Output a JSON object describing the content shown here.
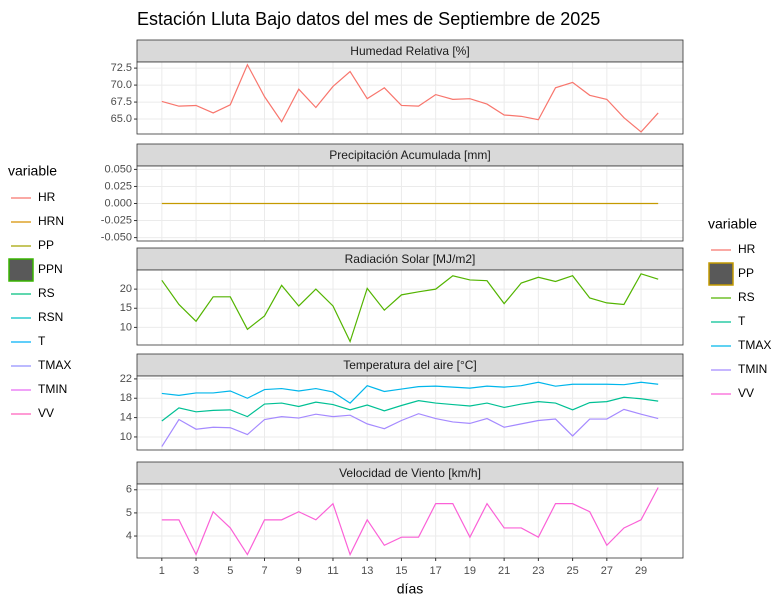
{
  "title": "Estación Lluta Bajo datos del mes de Septiembre de 2025",
  "x_label": "días",
  "legends": [
    {
      "title": "variable",
      "entries": [
        {
          "name": "HR",
          "color": "#f8766d"
        },
        {
          "name": "HRN",
          "color": "#d89000"
        },
        {
          "name": "PP",
          "color": "#a3a500"
        },
        {
          "name": "PPN",
          "color": "#39b600",
          "key": "box"
        },
        {
          "name": "RS",
          "color": "#00bf7d"
        },
        {
          "name": "RSN",
          "color": "#00bfc4"
        },
        {
          "name": "T",
          "color": "#00b0f6"
        },
        {
          "name": "TMAX",
          "color": "#9590ff"
        },
        {
          "name": "TMIN",
          "color": "#e76bf3"
        },
        {
          "name": "VV",
          "color": "#ff62bc"
        }
      ]
    },
    {
      "title": "variable",
      "entries": [
        {
          "name": "HR",
          "color": "#f8766d"
        },
        {
          "name": "PP",
          "color": "#c49a00",
          "key": "box"
        },
        {
          "name": "RS",
          "color": "#53b400"
        },
        {
          "name": "T",
          "color": "#00c094"
        },
        {
          "name": "TMAX",
          "color": "#00b6eb"
        },
        {
          "name": "TMIN",
          "color": "#a58aff"
        },
        {
          "name": "VV",
          "color": "#fb61d7"
        }
      ]
    }
  ],
  "chart_data": [
    {
      "type": "line",
      "title": "Humedad Relativa [%]",
      "x": [
        1,
        2,
        3,
        4,
        5,
        6,
        7,
        8,
        9,
        10,
        11,
        12,
        13,
        14,
        15,
        16,
        17,
        18,
        19,
        20,
        21,
        22,
        23,
        24,
        25,
        26,
        27,
        28,
        29,
        30
      ],
      "series": [
        {
          "name": "HR",
          "color": "#f8766d",
          "values": [
            67.6,
            66.9,
            67.0,
            65.9,
            67.1,
            73.0,
            68.3,
            64.6,
            69.4,
            66.7,
            69.8,
            72.0,
            68.0,
            69.6,
            67.0,
            66.9,
            68.6,
            67.9,
            68.0,
            67.2,
            65.6,
            65.4,
            64.9,
            69.6,
            70.4,
            68.5,
            67.9,
            65.2,
            63.1,
            65.9
          ]
        }
      ],
      "xlim": [
        -0.45,
        31.45
      ],
      "ylim": [
        62.8,
        73.4
      ],
      "yticks": [
        {
          "value": 65,
          "label": "65.0"
        },
        {
          "value": 67.5,
          "label": "67.5"
        },
        {
          "value": 70,
          "label": "70.0"
        },
        {
          "value": 72.5,
          "label": "72.5"
        }
      ],
      "grid": true
    },
    {
      "type": "line",
      "title": "Precipitación Acumulada [mm]",
      "x": [
        1,
        2,
        3,
        4,
        5,
        6,
        7,
        8,
        9,
        10,
        11,
        12,
        13,
        14,
        15,
        16,
        17,
        18,
        19,
        20,
        21,
        22,
        23,
        24,
        25,
        26,
        27,
        28,
        29,
        30
      ],
      "series": [
        {
          "name": "PP",
          "color": "#c49a00",
          "values": [
            0,
            0,
            0,
            0,
            0,
            0,
            0,
            0,
            0,
            0,
            0,
            0,
            0,
            0,
            0,
            0,
            0,
            0,
            0,
            0,
            0,
            0,
            0,
            0,
            0,
            0,
            0,
            0,
            0,
            0
          ]
        }
      ],
      "xlim": [
        -0.45,
        31.45
      ],
      "ylim": [
        -0.055,
        0.055
      ],
      "yticks": [
        {
          "value": -0.05,
          "label": "-0.050"
        },
        {
          "value": -0.025,
          "label": "-0.025"
        },
        {
          "value": 0,
          "label": "0.000"
        },
        {
          "value": 0.025,
          "label": "0.025"
        },
        {
          "value": 0.05,
          "label": "0.050"
        }
      ],
      "grid": true
    },
    {
      "type": "line",
      "title": "Radiación Solar [MJ/m2]",
      "x": [
        1,
        2,
        3,
        4,
        5,
        6,
        7,
        8,
        9,
        10,
        11,
        12,
        13,
        14,
        15,
        16,
        17,
        18,
        19,
        20,
        21,
        22,
        23,
        24,
        25,
        26,
        27,
        28,
        29,
        30
      ],
      "series": [
        {
          "name": "RS",
          "color": "#53b400",
          "values": [
            22.3,
            16.0,
            11.6,
            18.0,
            18.0,
            9.5,
            13.0,
            21.0,
            15.6,
            20.0,
            15.6,
            6.3,
            20.2,
            14.5,
            18.5,
            19.3,
            20.0,
            23.5,
            22.4,
            22.2,
            16.2,
            21.6,
            23.1,
            22.0,
            23.5,
            17.7,
            16.4,
            16.0,
            24.0,
            22.6
          ]
        }
      ],
      "xlim": [
        -0.45,
        31.45
      ],
      "ylim": [
        5.4,
        25.0
      ],
      "yticks": [
        10,
        15,
        20
      ],
      "grid": true
    },
    {
      "type": "line",
      "title": "Temperatura del aire [°C]",
      "x": [
        1,
        2,
        3,
        4,
        5,
        6,
        7,
        8,
        9,
        10,
        11,
        12,
        13,
        14,
        15,
        16,
        17,
        18,
        19,
        20,
        21,
        22,
        23,
        24,
        25,
        26,
        27,
        28,
        29,
        30
      ],
      "series": [
        {
          "name": "T",
          "color": "#00c094",
          "values": [
            13.3,
            16.0,
            15.2,
            15.5,
            15.6,
            14.2,
            16.8,
            17.0,
            16.3,
            17.2,
            16.7,
            15.6,
            16.6,
            15.4,
            16.5,
            17.5,
            17.0,
            16.7,
            16.4,
            17.0,
            16.1,
            16.8,
            17.3,
            17.0,
            15.6,
            17.1,
            17.3,
            18.2,
            17.9,
            17.4
          ]
        },
        {
          "name": "TMAX",
          "color": "#00b6eb",
          "values": [
            19.0,
            18.6,
            19.1,
            19.1,
            19.5,
            18.0,
            19.8,
            20.0,
            19.5,
            20.0,
            19.3,
            17.0,
            20.6,
            19.4,
            19.9,
            20.4,
            20.5,
            20.3,
            20.1,
            20.5,
            20.3,
            20.6,
            21.3,
            20.5,
            20.9,
            20.9,
            20.9,
            20.8,
            21.3,
            20.9
          ]
        },
        {
          "name": "TMIN",
          "color": "#a58aff",
          "values": [
            8.0,
            13.6,
            11.6,
            12.0,
            11.9,
            10.5,
            13.6,
            14.2,
            13.9,
            14.7,
            14.2,
            14.5,
            12.7,
            11.7,
            13.4,
            14.8,
            13.8,
            13.1,
            12.8,
            13.8,
            12.0,
            12.7,
            13.4,
            13.7,
            10.2,
            13.7,
            13.7,
            15.7,
            14.7,
            13.8
          ]
        }
      ],
      "xlim": [
        -0.45,
        31.45
      ],
      "ylim": [
        7.3,
        22.6
      ],
      "yticks": [
        10,
        14,
        18,
        22
      ],
      "grid": true
    },
    {
      "type": "line",
      "title": "Velocidad de Viento [km/h]",
      "x": [
        1,
        2,
        3,
        4,
        5,
        6,
        7,
        8,
        9,
        10,
        11,
        12,
        13,
        14,
        15,
        16,
        17,
        18,
        19,
        20,
        21,
        22,
        23,
        24,
        25,
        26,
        27,
        28,
        29,
        30
      ],
      "series": [
        {
          "name": "VV",
          "color": "#fb61d7",
          "values": [
            4.7,
            4.7,
            3.2,
            5.05,
            4.35,
            3.2,
            4.7,
            4.7,
            5.05,
            4.7,
            5.4,
            3.2,
            4.7,
            3.6,
            3.95,
            3.95,
            5.4,
            5.4,
            3.95,
            5.4,
            4.35,
            4.35,
            3.95,
            5.4,
            5.4,
            5.05,
            3.6,
            4.35,
            4.7,
            6.1
          ]
        }
      ],
      "xlim": [
        -0.45,
        31.45
      ],
      "ylim": [
        3.05,
        6.25
      ],
      "yticks": [
        4,
        5,
        6
      ],
      "xticks": [
        1,
        3,
        5,
        7,
        9,
        11,
        13,
        15,
        17,
        19,
        21,
        23,
        25,
        27,
        29
      ],
      "grid": true
    }
  ]
}
